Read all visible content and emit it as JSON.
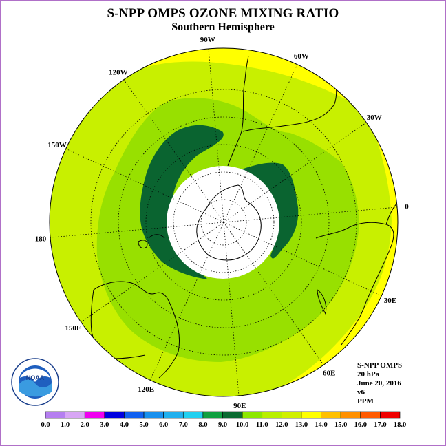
{
  "title": "S-NPP OMPS OZONE MIXING RATIO",
  "subtitle": "Southern Hemisphere",
  "info": {
    "instrument": "S-NPP OMPS",
    "level": "20 hPa",
    "date": "June 20, 2016",
    "version": "v6",
    "units": "PPM"
  },
  "logo_text": "NOAA",
  "longitude_labels": [
    "90W",
    "60W",
    "30W",
    "0",
    "30E",
    "60E",
    "90E",
    "120E",
    "150E",
    "180",
    "150W",
    "120W"
  ],
  "colorbar": {
    "ticks": [
      "0.0",
      "1.0",
      "2.0",
      "3.0",
      "4.0",
      "5.0",
      "6.0",
      "7.0",
      "8.0",
      "9.0",
      "10.0",
      "11.0",
      "12.0",
      "13.0",
      "14.0",
      "15.0",
      "16.0",
      "17.0",
      "18.0"
    ],
    "colors": [
      "#b57ff0",
      "#d8a6f5",
      "#f000f0",
      "#0000e0",
      "#1060f0",
      "#1890ee",
      "#20b0ee",
      "#20d0f0",
      "#10a040",
      "#0a6a30",
      "#8ce800",
      "#b8f000",
      "#d0f000",
      "#ffff00",
      "#ffc000",
      "#ff9000",
      "#ff5a00",
      "#f00000",
      "#7a4a30"
    ]
  },
  "field_colors": {
    "band_12_13": "#ffff00",
    "band_11_12": "#c8f000",
    "band_10_11": "#98e000",
    "band_9_10": "#0a6430",
    "no_data": "#ffffff"
  }
}
